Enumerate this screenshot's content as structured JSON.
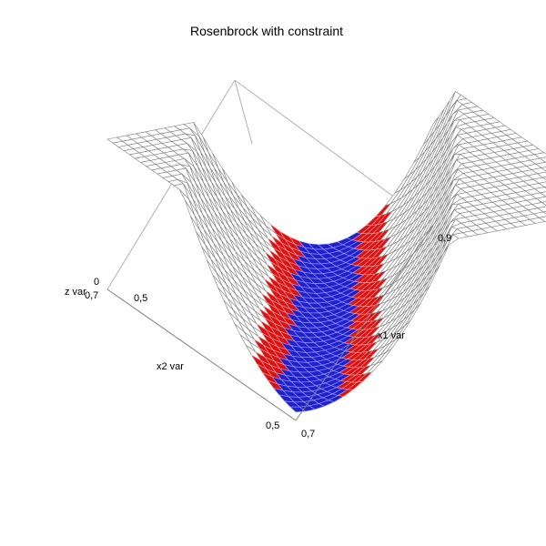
{
  "chart_data": {
    "type": "surface",
    "title": "Rosenbrock with constraint",
    "surface_function": "(1 - x1)^2 + 100*(x2 - x1^2)^2",
    "axes": {
      "x1": {
        "label": "x1 var",
        "range": [
          0.7,
          0.9
        ],
        "tick_labels": [
          "0,7",
          "0,9"
        ]
      },
      "x2": {
        "label": "x2 var",
        "range": [
          0.5,
          0.7
        ],
        "tick_labels": [
          "0,5",
          "0,7"
        ]
      },
      "z": {
        "label": "z var",
        "range": [
          0,
          1.8
        ],
        "tick_labels": [
          "0",
          "0,5"
        ]
      }
    },
    "constraint_feasible_region": {
      "expression": "x2 ≈ x1^2",
      "color": "#2020cc"
    },
    "colors": {
      "mesh_line": "#808080",
      "constraint_floor": "#dd1111",
      "feasible": "#2020cc",
      "frame": "#b0b0b0"
    }
  }
}
